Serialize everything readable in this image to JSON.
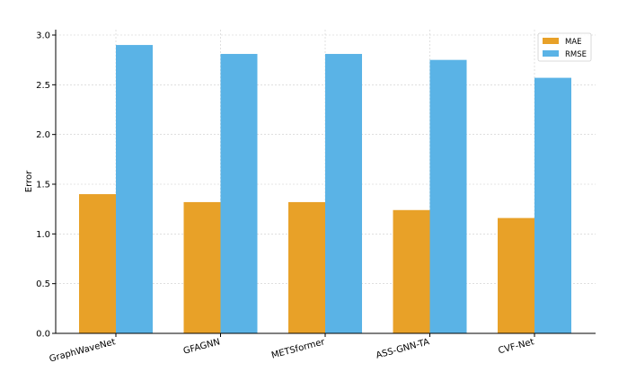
{
  "chart_data": {
    "type": "bar",
    "title": "",
    "xlabel": "",
    "ylabel": "Error",
    "ylim": [
      0,
      3.0
    ],
    "yticks": [
      "0.0",
      "0.5",
      "1.0",
      "1.5",
      "2.0",
      "2.5",
      "3.0"
    ],
    "categories": [
      "GraphWaveNet",
      "GFAGNN",
      "METSformer",
      "ASS-GNN-TA",
      "CVF-Net"
    ],
    "series": [
      {
        "name": "MAE",
        "color": "#E8A128",
        "values": [
          1.4,
          1.32,
          1.32,
          1.24,
          1.16
        ]
      },
      {
        "name": "RMSE",
        "color": "#5AB3E6",
        "values": [
          2.9,
          2.81,
          2.81,
          2.75,
          2.57
        ]
      }
    ],
    "grid": true,
    "legend_position": "top-right"
  }
}
